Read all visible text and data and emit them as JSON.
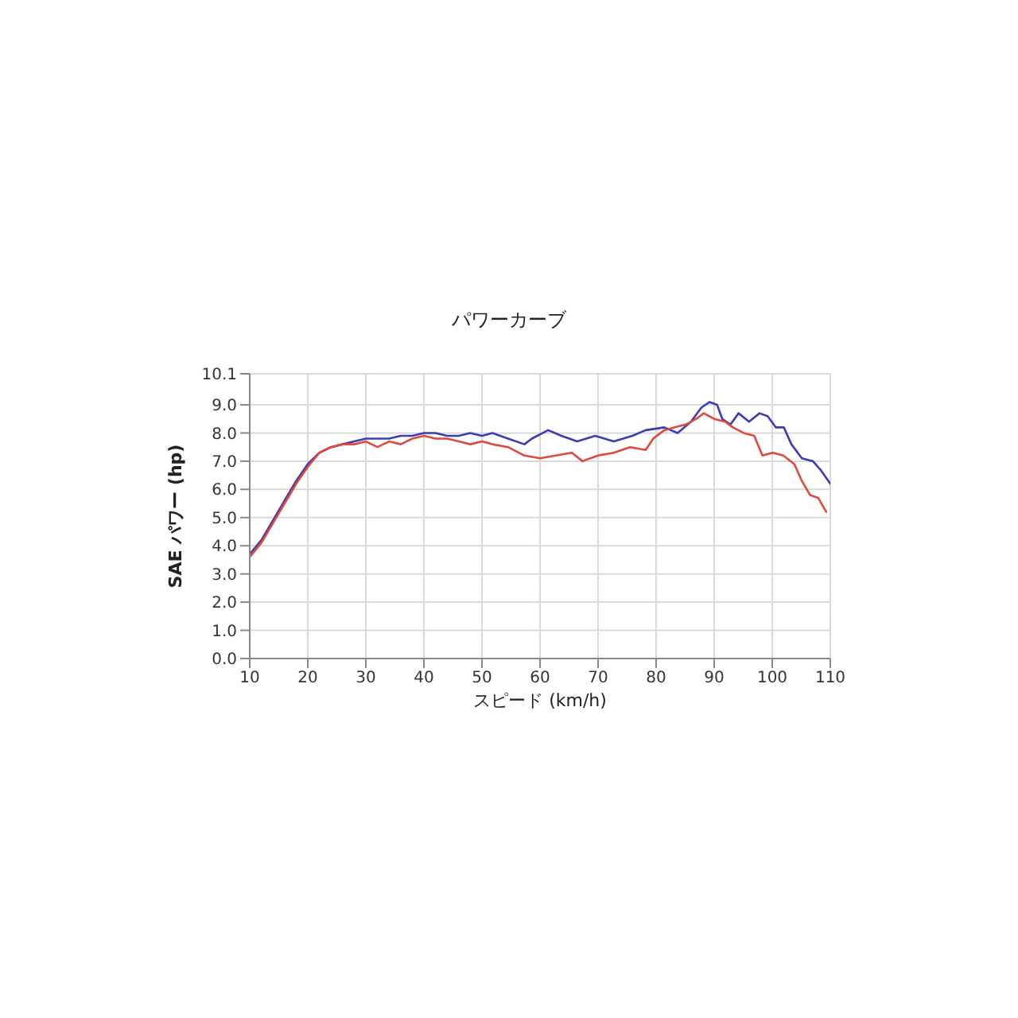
{
  "chart_data": {
    "type": "line",
    "title": "パワーカーブ",
    "xlabel": "スピード (km/h)",
    "ylabel": "SAE パワー (hp)",
    "xlim": [
      10,
      110
    ],
    "xticks": [
      10,
      20,
      30,
      40,
      50,
      60,
      70,
      80,
      90,
      100,
      110
    ],
    "ylim": [
      0,
      10.1
    ],
    "yticks": [
      {
        "value": 0,
        "label": "0.0"
      },
      {
        "value": 1,
        "label": "1.0"
      },
      {
        "value": 2,
        "label": "2.0"
      },
      {
        "value": 3,
        "label": "3.0"
      },
      {
        "value": 4,
        "label": "4.0"
      },
      {
        "value": 5,
        "label": "5.0"
      },
      {
        "value": 6,
        "label": "6.0"
      },
      {
        "value": 7,
        "label": "7.0"
      },
      {
        "value": 8,
        "label": "8.0"
      },
      {
        "value": 9,
        "label": "9.0"
      },
      10.1
    ],
    "grid": true,
    "marker": "none",
    "line_style": "solid",
    "series": [
      {
        "color": "#3c3cb4",
        "x": [
          10,
          12,
          14,
          16,
          18,
          20,
          22,
          24,
          26,
          28,
          30,
          32,
          34,
          36,
          38,
          40,
          42,
          44,
          46,
          48,
          50,
          51.8,
          54.5,
          57.3,
          58.6,
          61.4,
          63.7,
          66.4,
          69.5,
          72.7,
          75.9,
          78.2,
          81.4,
          83.7,
          86,
          87.8,
          89.2,
          90.5,
          91.4,
          92.8,
          94.2,
          96,
          97.8,
          99.2,
          100.6,
          102,
          103.3,
          105.1,
          107,
          108.3,
          110
        ],
        "values": [
          3.7,
          4.2,
          4.9,
          5.6,
          6.3,
          6.9,
          7.3,
          7.5,
          7.6,
          7.7,
          7.8,
          7.8,
          7.8,
          7.9,
          7.9,
          8.0,
          8.0,
          7.9,
          7.9,
          8.0,
          7.9,
          8.0,
          7.8,
          7.6,
          7.8,
          8.1,
          7.9,
          7.7,
          7.9,
          7.7,
          7.9,
          8.1,
          8.2,
          8.0,
          8.4,
          8.9,
          9.1,
          9.0,
          8.5,
          8.3,
          8.7,
          8.4,
          8.7,
          8.6,
          8.2,
          8.2,
          7.6,
          7.1,
          7.0,
          6.7,
          6.2
        ]
      },
      {
        "color": "#e0483c",
        "x": [
          10,
          12,
          14,
          16,
          18,
          20,
          22,
          24,
          26,
          28,
          30,
          32,
          34,
          36,
          38,
          40,
          42,
          44,
          46,
          48,
          50,
          51.8,
          54.5,
          57.3,
          60,
          62.7,
          65.5,
          67.3,
          70,
          72.7,
          75.5,
          78.2,
          79.5,
          81.4,
          83.2,
          85.1,
          86.9,
          88.2,
          90,
          91.9,
          93.2,
          95.1,
          96.9,
          98.3,
          100.1,
          101.9,
          103.8,
          105.1,
          106.5,
          107.9,
          109.3
        ],
        "values": [
          3.6,
          4.1,
          4.8,
          5.5,
          6.2,
          6.8,
          7.3,
          7.5,
          7.6,
          7.6,
          7.7,
          7.5,
          7.7,
          7.6,
          7.8,
          7.9,
          7.8,
          7.8,
          7.7,
          7.6,
          7.7,
          7.6,
          7.5,
          7.2,
          7.1,
          7.2,
          7.3,
          7.0,
          7.2,
          7.3,
          7.5,
          7.4,
          7.8,
          8.1,
          8.2,
          8.3,
          8.5,
          8.7,
          8.5,
          8.4,
          8.2,
          8.0,
          7.9,
          7.2,
          7.3,
          7.2,
          6.9,
          6.3,
          5.8,
          5.7,
          5.2
        ]
      }
    ]
  }
}
